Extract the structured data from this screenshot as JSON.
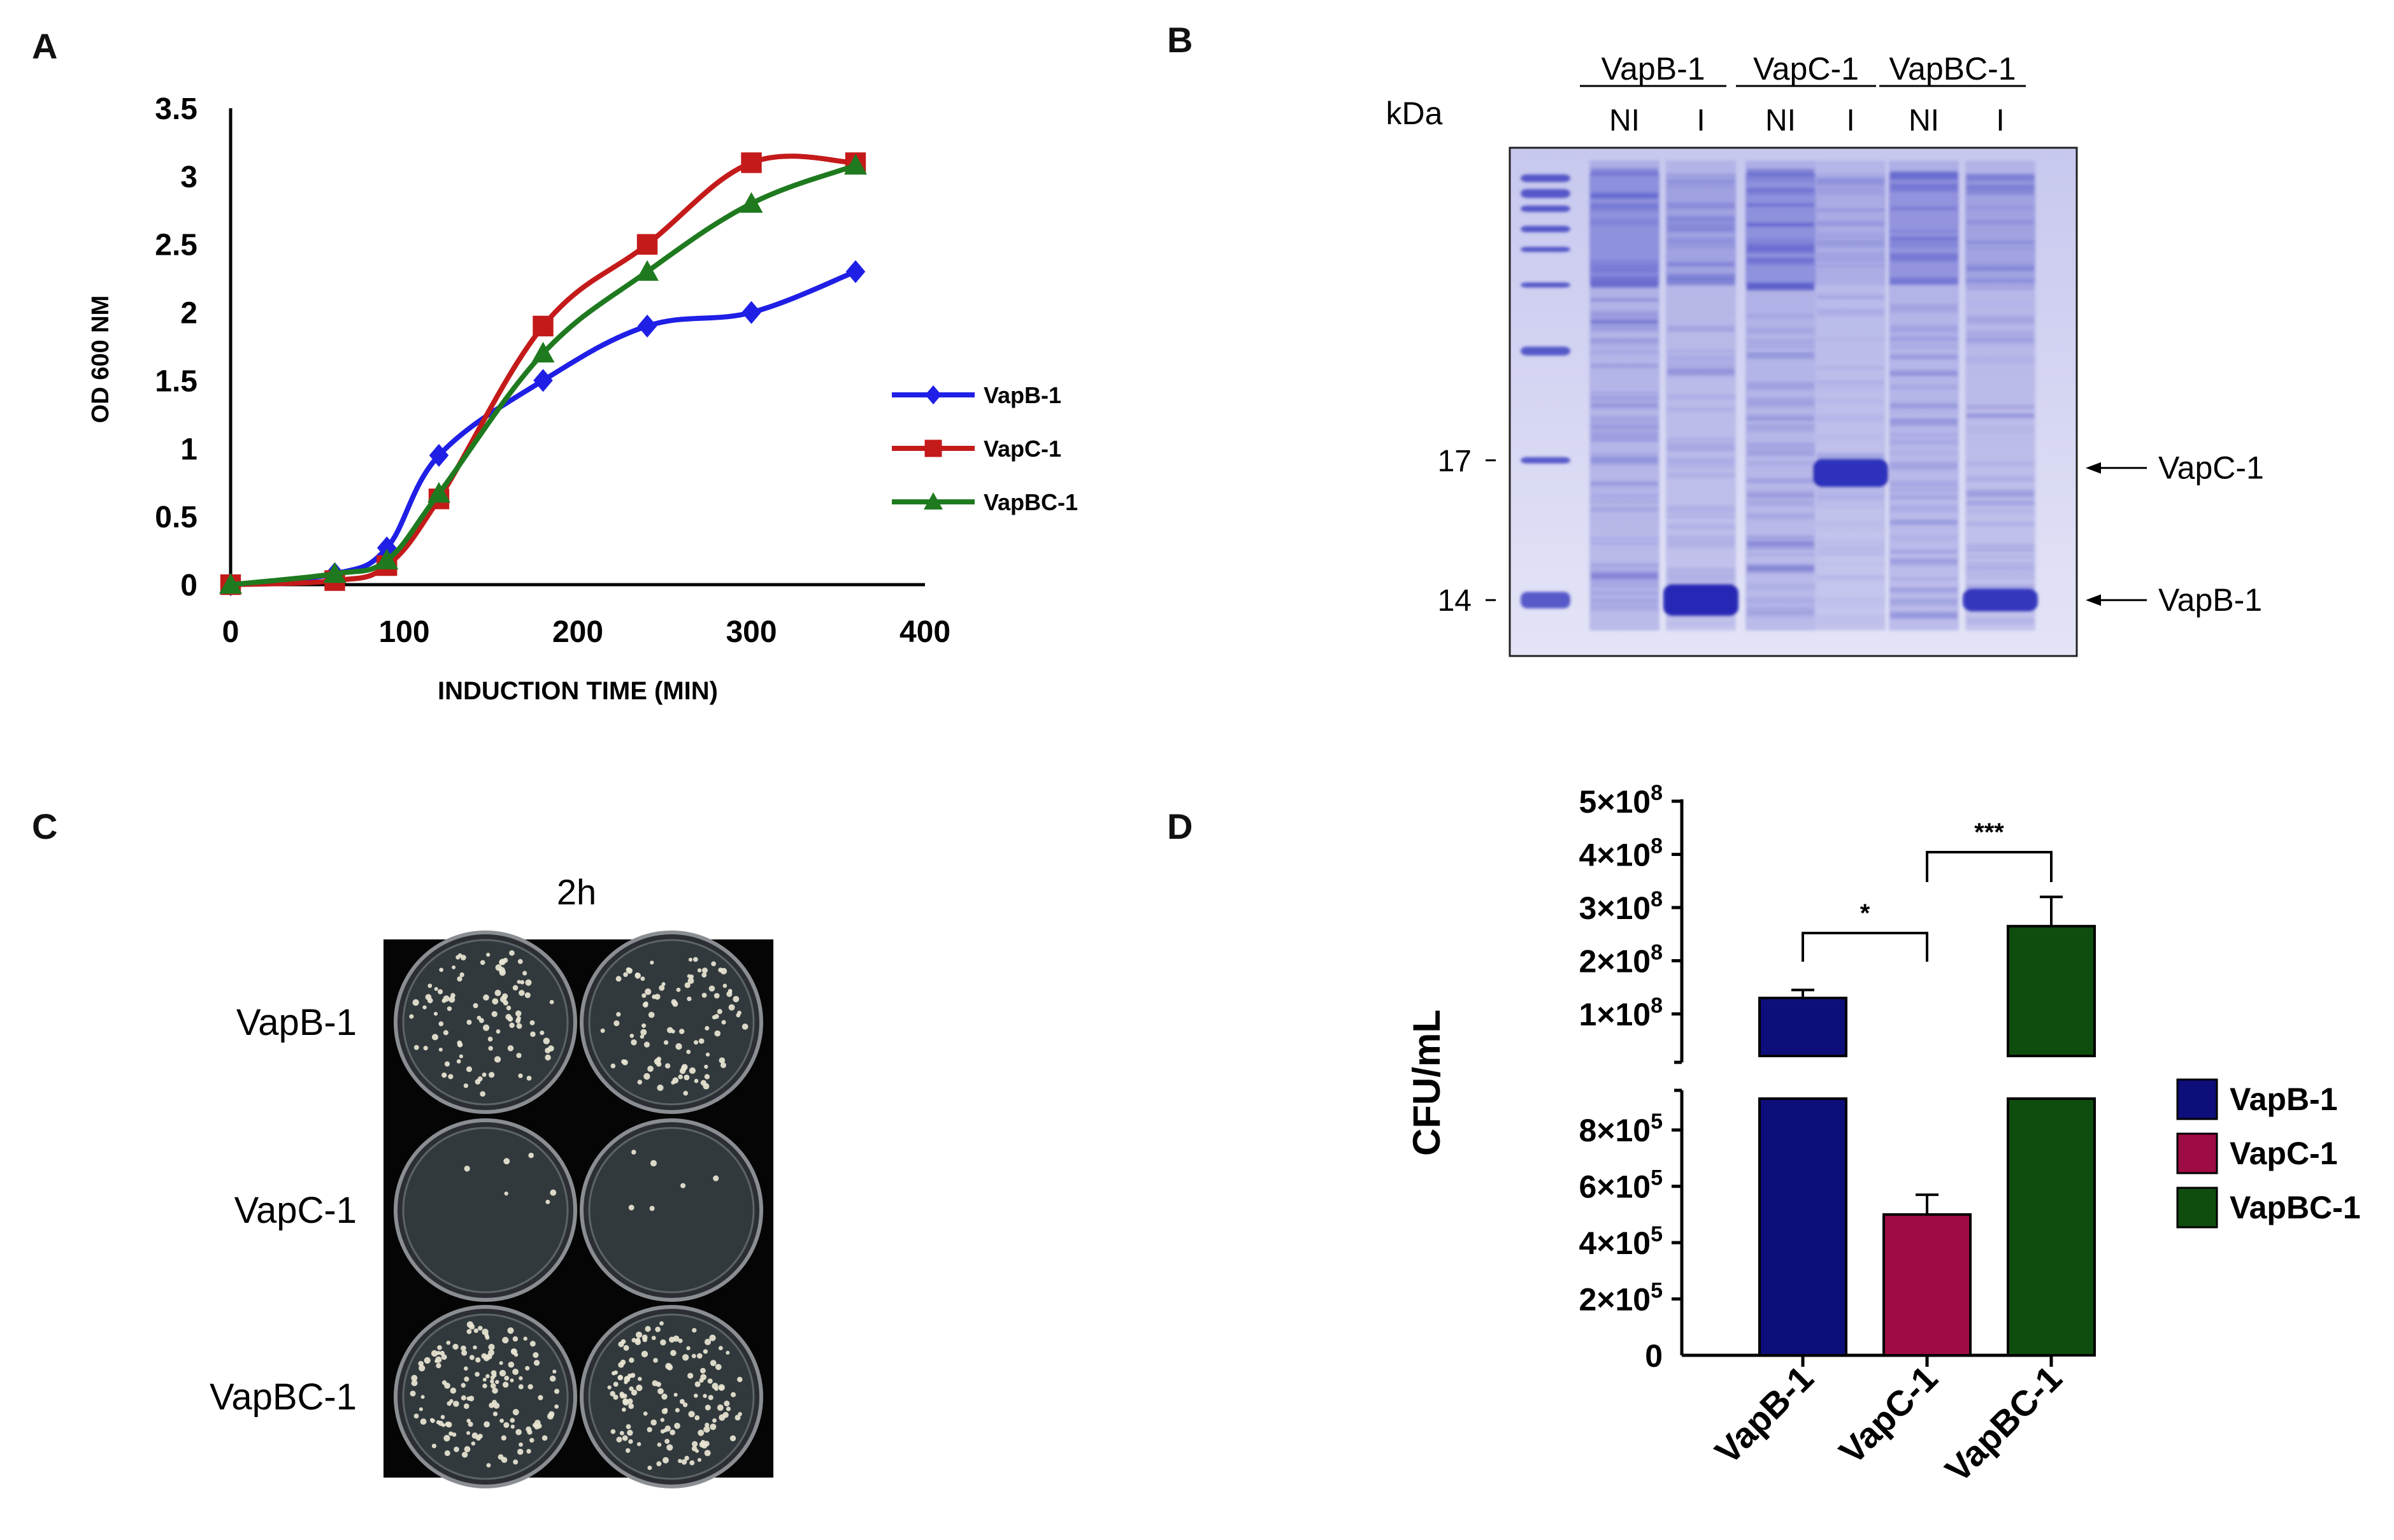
{
  "panels": {
    "a": {
      "letter": "A"
    },
    "b": {
      "letter": "B"
    },
    "c": {
      "letter": "C"
    },
    "d": {
      "letter": "D"
    }
  },
  "chart_data": [
    {
      "id": "growth",
      "type": "line",
      "title": "",
      "xlabel": "INDUCTION TIME (MIN)",
      "ylabel": "OD 600 NM",
      "xlim": [
        0,
        400
      ],
      "ylim": [
        0,
        3.5
      ],
      "xticks": [
        "0",
        "100",
        "200",
        "300",
        "400"
      ],
      "yticks": [
        "0",
        "0.5",
        "1",
        "1.5",
        "2",
        "2.5",
        "3",
        "3.5"
      ],
      "legend_position": "right",
      "series": [
        {
          "name": "VapB-1",
          "color": "#1f1fe6",
          "marker": "diamond",
          "x": [
            0,
            60,
            90,
            120,
            180,
            240,
            300,
            360
          ],
          "y": [
            0.0,
            0.08,
            0.27,
            0.95,
            1.5,
            1.9,
            2.0,
            2.3
          ]
        },
        {
          "name": "VapC-1",
          "color": "#c41a1a",
          "marker": "square",
          "x": [
            0,
            60,
            90,
            120,
            180,
            240,
            300,
            360
          ],
          "y": [
            0.0,
            0.03,
            0.14,
            0.63,
            1.9,
            2.5,
            3.1,
            3.1
          ]
        },
        {
          "name": "VapBC-1",
          "color": "#1f7a1f",
          "marker": "triangle",
          "x": [
            0,
            60,
            90,
            120,
            180,
            240,
            300,
            360
          ],
          "y": [
            0.0,
            0.08,
            0.18,
            0.67,
            1.7,
            2.3,
            2.8,
            3.08
          ]
        }
      ]
    },
    {
      "id": "cfu",
      "type": "bar",
      "title": "",
      "ylabel": "CFU/mL",
      "categories": [
        "VapB-1",
        "VapC-1",
        "VapBC-1"
      ],
      "values": [
        130000000,
        500000,
        265000000
      ],
      "errors": [
        15000000,
        70000,
        55000000
      ],
      "colors": [
        "#0e0e7a",
        "#9e0b45",
        "#0f4d0f"
      ],
      "axis_break": true,
      "upper_range": [
        0,
        500000000
      ],
      "lower_range": [
        0,
        900000
      ],
      "upper_ticks": [
        {
          "mant": "1",
          "exp": "8",
          "v": 100000000
        },
        {
          "mant": "2",
          "exp": "8",
          "v": 200000000
        },
        {
          "mant": "3",
          "exp": "8",
          "v": 300000000
        },
        {
          "mant": "4",
          "exp": "8",
          "v": 400000000
        },
        {
          "mant": "5",
          "exp": "8",
          "v": 500000000
        }
      ],
      "lower_ticks": [
        {
          "mant": "",
          "exp": "",
          "v": 0
        },
        {
          "mant": "2",
          "exp": "5",
          "v": 200000
        },
        {
          "mant": "4",
          "exp": "5",
          "v": 400000
        },
        {
          "mant": "6",
          "exp": "5",
          "v": 600000
        },
        {
          "mant": "8",
          "exp": "5",
          "v": 800000
        }
      ],
      "times_label": "×10",
      "zero_label": "0",
      "significance": [
        {
          "from": "VapB-1",
          "to": "VapC-1",
          "label": "*"
        },
        {
          "from": "VapC-1",
          "to": "VapBC-1",
          "label": "***"
        }
      ],
      "legend_position": "right"
    }
  ],
  "gel": {
    "unit_label": "kDa",
    "groups": [
      "VapB-1",
      "VapC-1",
      "VapBC-1"
    ],
    "lanes": [
      "NI",
      "I",
      "NI",
      "I",
      "NI",
      "I"
    ],
    "markers": [
      {
        "label": "17",
        "pos": 0.615
      },
      {
        "label": "14",
        "pos": 0.89
      }
    ],
    "band_labels": [
      {
        "label": "VapC-1",
        "pos": 0.63
      },
      {
        "label": "VapB-1",
        "pos": 0.89
      }
    ]
  },
  "plates": {
    "timepoint": "2h",
    "rows": [
      "VapB-1",
      "VapC-1",
      "VapBC-1"
    ],
    "colony_density": [
      95,
      6,
      140
    ]
  }
}
